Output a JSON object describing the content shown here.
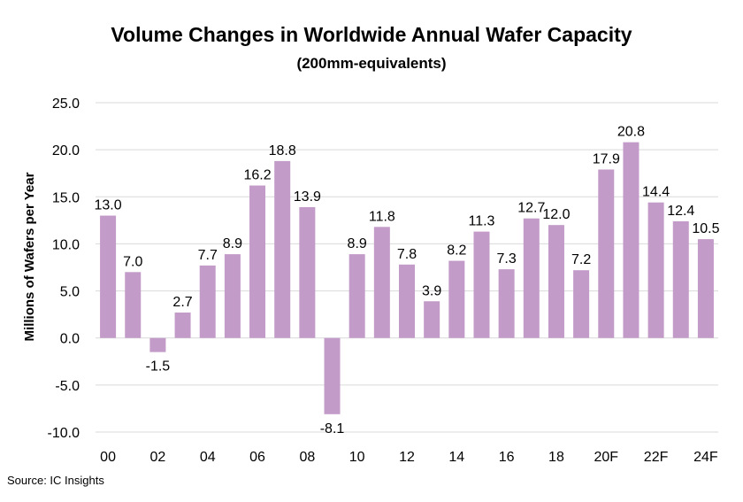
{
  "chart_data": {
    "type": "bar",
    "title": "Volume Changes in Worldwide Annual Wafer Capacity",
    "subtitle": "(200mm-equivalents)",
    "ylabel": "Millions of Wafers per Year",
    "xlabel": "",
    "ylim": [
      -10.0,
      25.0
    ],
    "yticks": [
      "25.0",
      "20.0",
      "15.0",
      "10.0",
      "5.0",
      "0.0",
      "-5.0",
      "-10.0"
    ],
    "ytick_values": [
      25,
      20,
      15,
      10,
      5,
      0,
      -5,
      -10
    ],
    "x_tick_labels": [
      "00",
      "",
      "02",
      "",
      "04",
      "",
      "06",
      "",
      "08",
      "",
      "10",
      "",
      "12",
      "",
      "14",
      "",
      "16",
      "",
      "18",
      "",
      "20F",
      "",
      "22F",
      "",
      "24F"
    ],
    "categories": [
      "2000",
      "2001",
      "2002",
      "2003",
      "2004",
      "2005",
      "2006",
      "2007",
      "2008",
      "2009",
      "2010",
      "2011",
      "2012",
      "2013",
      "2014",
      "2015",
      "2016",
      "2017",
      "2018",
      "2019",
      "2020F",
      "2021F",
      "2022F",
      "2023F",
      "2024F"
    ],
    "values": [
      13.0,
      7.0,
      -1.5,
      2.7,
      7.7,
      8.9,
      16.2,
      18.8,
      13.9,
      -8.1,
      8.9,
      11.8,
      7.8,
      3.9,
      8.2,
      11.3,
      7.3,
      12.7,
      12.0,
      7.2,
      17.9,
      20.8,
      14.4,
      12.4,
      10.5
    ],
    "data_labels": [
      "13.0",
      "7.0",
      "-1.5",
      "2.7",
      "7.7",
      "8.9",
      "16.2",
      "18.8",
      "13.9",
      "-8.1",
      "8.9",
      "11.8",
      "7.8",
      "3.9",
      "8.2",
      "11.3",
      "7.3",
      "12.7",
      "12.0",
      "7.2",
      "17.9",
      "20.8",
      "14.4",
      "12.4",
      "10.5"
    ],
    "bar_color": "#c39bc8",
    "grid_color": "#d9d9d9",
    "grid": true,
    "legend": false
  },
  "source_text": "Source:  IC Insights"
}
